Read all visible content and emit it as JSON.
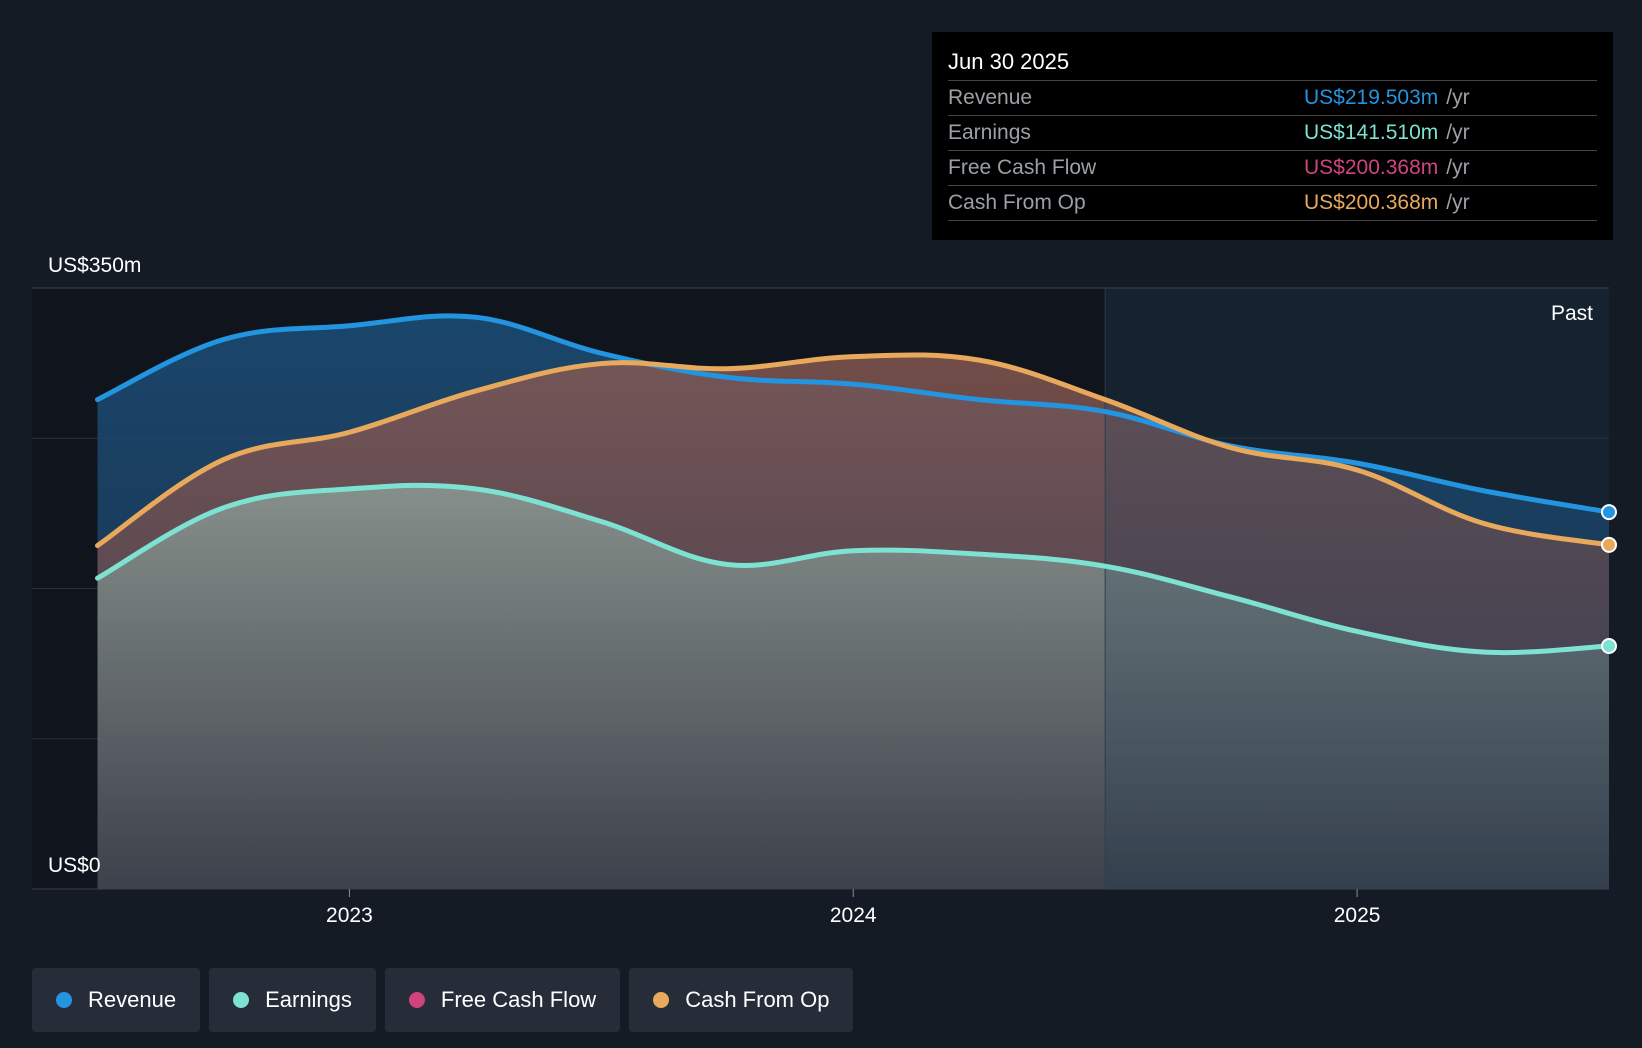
{
  "chart_data": {
    "type": "area",
    "y_unit": "US$m",
    "ylim": [
      0,
      350
    ],
    "y_tick_labels": {
      "top": "US$350m",
      "bottom": "US$0"
    },
    "x_tick_labels": [
      "2023",
      "2024",
      "2025"
    ],
    "x_ticks": [
      2023.0,
      2024.0,
      2025.0
    ],
    "xlim": [
      2022.37,
      2025.5
    ],
    "past_start": 2024.5,
    "past_label": "Past",
    "series": [
      {
        "name": "Revenue",
        "color": "#2394df",
        "points": [
          [
            2022.5,
            285
          ],
          [
            2022.75,
            320
          ],
          [
            2023.0,
            328
          ],
          [
            2023.25,
            333
          ],
          [
            2023.5,
            312
          ],
          [
            2023.75,
            298
          ],
          [
            2024.0,
            294
          ],
          [
            2024.25,
            285
          ],
          [
            2024.5,
            278
          ],
          [
            2024.75,
            258
          ],
          [
            2025.0,
            248
          ],
          [
            2025.25,
            232
          ],
          [
            2025.5,
            219.5
          ]
        ]
      },
      {
        "name": "Cash From Op",
        "color": "#e8a95c",
        "points": [
          [
            2022.5,
            200
          ],
          [
            2022.75,
            250
          ],
          [
            2023.0,
            266
          ],
          [
            2023.25,
            290
          ],
          [
            2023.5,
            306
          ],
          [
            2023.75,
            303
          ],
          [
            2024.0,
            310
          ],
          [
            2024.25,
            308
          ],
          [
            2024.5,
            285
          ],
          [
            2024.75,
            257
          ],
          [
            2025.0,
            244
          ],
          [
            2025.25,
            213
          ],
          [
            2025.5,
            200.4
          ]
        ]
      },
      {
        "name": "Earnings",
        "color": "#7de2d1",
        "points": [
          [
            2022.5,
            181
          ],
          [
            2022.75,
            222
          ],
          [
            2023.0,
            233
          ],
          [
            2023.25,
            233
          ],
          [
            2023.5,
            214
          ],
          [
            2023.75,
            189
          ],
          [
            2024.0,
            197
          ],
          [
            2024.25,
            195
          ],
          [
            2024.5,
            188
          ],
          [
            2024.75,
            170
          ],
          [
            2025.0,
            150
          ],
          [
            2025.25,
            138
          ],
          [
            2025.5,
            141.5
          ]
        ]
      }
    ],
    "legend": [
      {
        "name": "Revenue",
        "color": "#2394df"
      },
      {
        "name": "Earnings",
        "color": "#7de2d1"
      },
      {
        "name": "Free Cash Flow",
        "color": "#d0437d"
      },
      {
        "name": "Cash From Op",
        "color": "#e8a95c"
      }
    ],
    "tooltip": {
      "date": "Jun 30 2025",
      "rows": [
        {
          "label": "Revenue",
          "value": "US$219.503m",
          "unit": "/yr",
          "color": "#2394df"
        },
        {
          "label": "Earnings",
          "value": "US$141.510m",
          "unit": "/yr",
          "color": "#7de2d1"
        },
        {
          "label": "Free Cash Flow",
          "value": "US$200.368m",
          "unit": "/yr",
          "color": "#d0437d"
        },
        {
          "label": "Cash From Op",
          "value": "US$200.368m",
          "unit": "/yr",
          "color": "#e8a95c"
        }
      ]
    }
  }
}
